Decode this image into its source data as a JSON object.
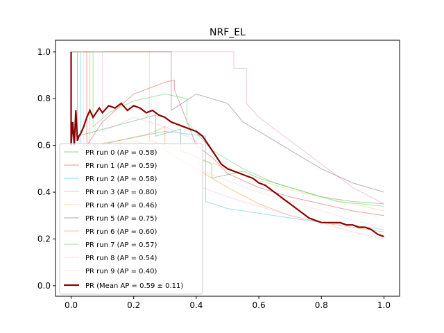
{
  "chart_data": {
    "type": "line",
    "title": "NRF_EL",
    "xlabel": "",
    "ylabel": "",
    "xlim": [
      -0.05,
      1.05
    ],
    "ylim": [
      -0.045,
      1.05
    ],
    "xticks": [
      "0.0",
      "0.2",
      "0.4",
      "0.6",
      "0.8",
      "1.0"
    ],
    "yticks": [
      "0.0",
      "0.2",
      "0.4",
      "0.6",
      "0.8",
      "1.0"
    ],
    "grid": false,
    "legend_position": "lower-left",
    "series": [
      {
        "name": "PR run 0 (AP = 0.58)",
        "color": "#2ca02c",
        "style": "thin",
        "x": [
          0,
          0.02,
          0.02,
          0.27,
          0.27,
          0.35,
          0.35,
          0.45,
          0.45,
          0.55,
          0.6,
          0.7,
          0.8,
          0.9,
          1.0
        ],
        "y": [
          1.0,
          1.0,
          0.64,
          0.73,
          0.64,
          0.67,
          0.58,
          0.52,
          0.46,
          0.49,
          0.46,
          0.42,
          0.38,
          0.36,
          0.35
        ]
      },
      {
        "name": "PR run 1 (AP = 0.59)",
        "color": "#d62728",
        "style": "thin",
        "x": [
          0,
          0.05,
          0.05,
          0.1,
          0.2,
          0.3,
          0.33,
          0.33,
          0.4,
          0.45,
          0.5,
          0.6,
          0.7,
          0.8,
          0.9,
          1.0
        ],
        "y": [
          1.0,
          1.0,
          0.6,
          0.7,
          0.82,
          0.87,
          0.88,
          0.84,
          0.6,
          0.55,
          0.48,
          0.42,
          0.38,
          0.35,
          0.32,
          0.3
        ]
      },
      {
        "name": "PR run 2 (AP = 0.58)",
        "color": "#17becf",
        "style": "thin",
        "x": [
          0,
          0.03,
          0.03,
          0.15,
          0.3,
          0.43,
          0.43,
          0.5,
          0.6,
          0.7,
          0.8,
          0.9,
          1.0
        ],
        "y": [
          1.0,
          1.0,
          0.58,
          0.62,
          0.66,
          0.64,
          0.36,
          0.33,
          0.31,
          0.29,
          0.27,
          0.26,
          0.24
        ]
      },
      {
        "name": "PR run 3 (AP = 0.80)",
        "color": "#e377c2",
        "style": "thin",
        "x": [
          0,
          0.52,
          0.52,
          0.56,
          0.56,
          0.6,
          0.7,
          0.8,
          0.9,
          1.0
        ],
        "y": [
          1.0,
          1.0,
          0.93,
          0.93,
          0.78,
          0.72,
          0.62,
          0.52,
          0.42,
          0.35
        ]
      },
      {
        "name": "PR run 4 (AP = 0.46)",
        "color": "#e8c65a",
        "style": "thin",
        "x": [
          0,
          0.25,
          0.25,
          0.3,
          0.4,
          0.5,
          0.6,
          0.7,
          0.8,
          0.9,
          1.0
        ],
        "y": [
          1.0,
          1.0,
          0.62,
          0.6,
          0.55,
          0.5,
          0.45,
          0.41,
          0.38,
          0.35,
          0.32
        ]
      },
      {
        "name": "PR run 5 (AP = 0.75)",
        "color": "#555555",
        "style": "thin",
        "x": [
          0,
          0.32,
          0.32,
          0.4,
          0.5,
          0.55,
          0.6,
          0.7,
          0.8,
          0.9,
          1.0
        ],
        "y": [
          1.0,
          1.0,
          0.75,
          0.82,
          0.78,
          0.7,
          0.66,
          0.58,
          0.5,
          0.44,
          0.4
        ]
      },
      {
        "name": "PR run 6 (AP = 0.60)",
        "color": "#ff7f0e",
        "style": "thin",
        "x": [
          0,
          0.06,
          0.06,
          0.15,
          0.25,
          0.3,
          0.3,
          0.4,
          0.5,
          0.6,
          0.7,
          0.8,
          0.9,
          1.0
        ],
        "y": [
          1.0,
          1.0,
          0.6,
          0.62,
          0.65,
          0.68,
          0.58,
          0.5,
          0.42,
          0.35,
          0.3,
          0.27,
          0.25,
          0.23
        ]
      },
      {
        "name": "PR run 7 (AP = 0.57)",
        "color": "#2ecc2e",
        "style": "thin",
        "x": [
          0,
          0.07,
          0.07,
          0.12,
          0.2,
          0.3,
          0.37,
          0.37,
          0.45,
          0.55,
          0.65,
          0.75,
          0.85,
          1.0
        ],
        "y": [
          1.0,
          1.0,
          0.68,
          0.74,
          0.79,
          0.82,
          0.8,
          0.7,
          0.58,
          0.5,
          0.44,
          0.4,
          0.36,
          0.34
        ]
      },
      {
        "name": "PR run 8 (AP = 0.54)",
        "color": "#f7a1e0",
        "style": "thin",
        "x": [
          0,
          0.1,
          0.1,
          0.2,
          0.3,
          0.4,
          0.42,
          0.5,
          0.6,
          0.7,
          0.8,
          0.9,
          1.0
        ],
        "y": [
          1.0,
          1.0,
          0.66,
          0.72,
          0.68,
          0.62,
          0.42,
          0.38,
          0.34,
          0.3,
          0.27,
          0.23,
          0.2
        ]
      },
      {
        "name": "PR run 9 (AP = 0.40)",
        "color": "#ffc0cb",
        "style": "thin",
        "x": [
          0,
          0.04,
          0.04,
          0.1,
          0.2,
          0.3,
          0.4,
          0.5,
          0.6,
          0.7,
          0.8,
          0.9,
          1.0
        ],
        "y": [
          1.0,
          1.0,
          0.55,
          0.6,
          0.62,
          0.58,
          0.5,
          0.45,
          0.4,
          0.36,
          0.32,
          0.28,
          0.25
        ]
      },
      {
        "name": "PR (Mean AP = 0.59 ± 0.11)",
        "color": "#8b0000",
        "style": "thick",
        "x": [
          0,
          0.0,
          0.005,
          0.01,
          0.015,
          0.02,
          0.025,
          0.03,
          0.04,
          0.05,
          0.06,
          0.07,
          0.08,
          0.09,
          0.1,
          0.12,
          0.14,
          0.16,
          0.18,
          0.2,
          0.22,
          0.24,
          0.26,
          0.28,
          0.3,
          0.32,
          0.34,
          0.36,
          0.38,
          0.4,
          0.42,
          0.44,
          0.46,
          0.48,
          0.5,
          0.52,
          0.54,
          0.56,
          0.58,
          0.6,
          0.62,
          0.64,
          0.66,
          0.68,
          0.7,
          0.72,
          0.74,
          0.76,
          0.78,
          0.8,
          0.82,
          0.84,
          0.86,
          0.88,
          0.9,
          0.92,
          0.94,
          0.96,
          0.98,
          1.0
        ],
        "y": [
          1.0,
          0.6,
          0.7,
          0.6,
          0.75,
          0.62,
          0.64,
          0.65,
          0.68,
          0.72,
          0.75,
          0.72,
          0.74,
          0.76,
          0.74,
          0.77,
          0.76,
          0.78,
          0.75,
          0.77,
          0.76,
          0.74,
          0.75,
          0.73,
          0.72,
          0.7,
          0.69,
          0.68,
          0.67,
          0.66,
          0.64,
          0.6,
          0.56,
          0.52,
          0.5,
          0.49,
          0.48,
          0.47,
          0.46,
          0.44,
          0.43,
          0.41,
          0.39,
          0.37,
          0.35,
          0.33,
          0.31,
          0.29,
          0.28,
          0.27,
          0.27,
          0.27,
          0.27,
          0.26,
          0.26,
          0.25,
          0.25,
          0.24,
          0.22,
          0.21
        ]
      }
    ]
  }
}
